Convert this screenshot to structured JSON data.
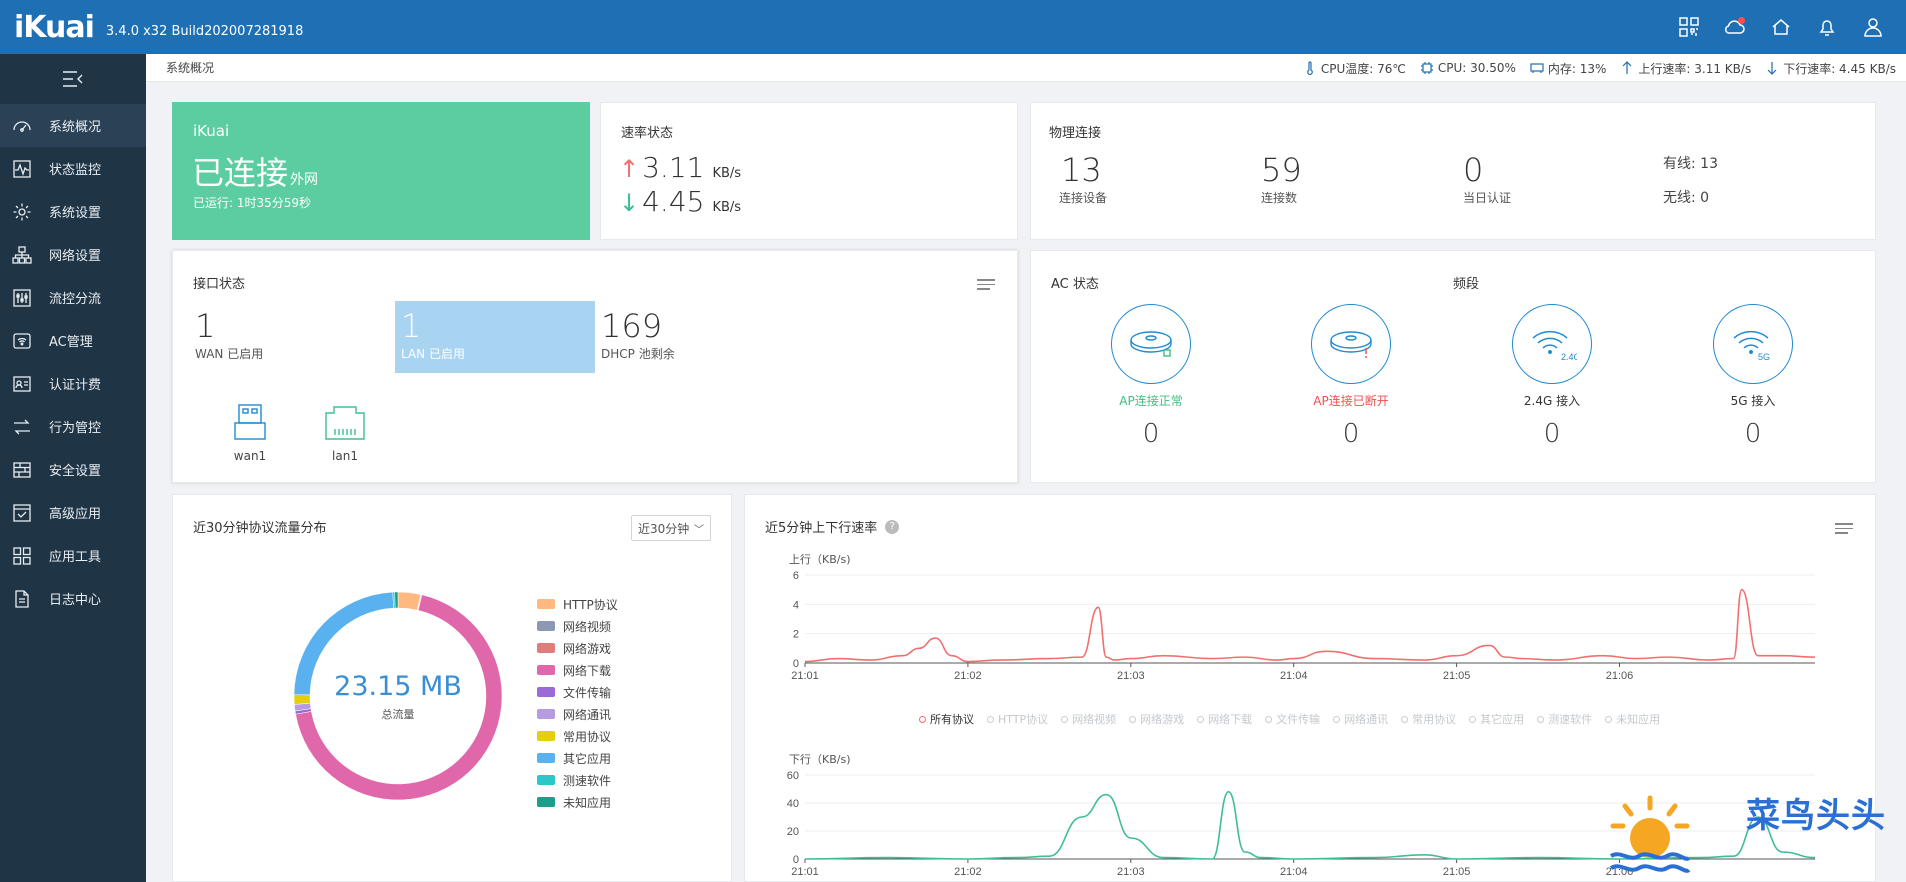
{
  "header": {
    "logo": "iKuai",
    "version": "3.4.0 x32 Build202007281918"
  },
  "sidebar": {
    "items": [
      {
        "label": "系统概况",
        "icon": "dashboard-icon"
      },
      {
        "label": "状态监控",
        "icon": "pulse-icon"
      },
      {
        "label": "系统设置",
        "icon": "gear-icon"
      },
      {
        "label": "网络设置",
        "icon": "network-icon"
      },
      {
        "label": "流控分流",
        "icon": "sliders-icon"
      },
      {
        "label": "AC管理",
        "icon": "ac-icon"
      },
      {
        "label": "认证计费",
        "icon": "id-card-icon"
      },
      {
        "label": "行为管控",
        "icon": "arrows-icon"
      },
      {
        "label": "安全设置",
        "icon": "firewall-icon"
      },
      {
        "label": "高级应用",
        "icon": "check-box-icon"
      },
      {
        "label": "应用工具",
        "icon": "apps-icon"
      },
      {
        "label": "日志中心",
        "icon": "document-icon"
      }
    ]
  },
  "subheader": {
    "breadcrumb": "系统概况",
    "cpu_temp": "CPU温度: 76℃",
    "cpu": "CPU: 30.50%",
    "memory": "内存: 13%",
    "up_speed": "上行速率: 3.11 KB/s",
    "down_speed": "下行速率: 4.45 KB/s"
  },
  "status_card": {
    "brand": "iKuai",
    "status": "已连接",
    "network": "外网",
    "uptime": "已运行: 1时35分59秒"
  },
  "rate_card": {
    "title": "速率状态",
    "up_value": "3.11",
    "up_unit": "KB/s",
    "down_value": "4.45",
    "down_unit": "KB/s"
  },
  "physical_card": {
    "title": "物理连接",
    "devices_value": "13",
    "devices_label": "连接设备",
    "connections_value": "59",
    "connections_label": "连接数",
    "auth_value": "0",
    "auth_label": "当日认证",
    "wired": "有线: 13",
    "wireless": "无线: 0"
  },
  "interface_card": {
    "title": "接口状态",
    "wan_value": "1",
    "wan_label": "WAN 已启用",
    "lan_value": "1",
    "lan_label": "LAN 已启用",
    "dhcp_value": "169",
    "dhcp_label": "DHCP 池剩余",
    "port1": "wan1",
    "port2": "lan1"
  },
  "ac_card": {
    "title": "AC 状态",
    "band_title": "频段",
    "items": [
      {
        "label": "AP连接正常",
        "value": "0",
        "color": "#3fbf7f"
      },
      {
        "label": "AP连接已断开",
        "value": "0",
        "color": "#f05050"
      },
      {
        "label": "2.4G 接入",
        "value": "0",
        "color": "#333333"
      },
      {
        "label": "5G 接入",
        "value": "0",
        "color": "#333333"
      }
    ],
    "badge_24": "2.4G",
    "badge_5": "5G"
  },
  "protocol_card": {
    "title": "近30分钟协议流量分布",
    "dropdown": "近30分钟",
    "total": "23.15 MB",
    "total_label": "总流量",
    "legend": [
      {
        "name": "HTTP协议",
        "color": "#ffb980"
      },
      {
        "name": "网络视频",
        "color": "#8d98b3"
      },
      {
        "name": "网络游戏",
        "color": "#e07c7c"
      },
      {
        "name": "网络下载",
        "color": "#e068aa"
      },
      {
        "name": "文件传输",
        "color": "#9a6bd6"
      },
      {
        "name": "网络通讯",
        "color": "#b69be0"
      },
      {
        "name": "常用协议",
        "color": "#e5cf0d"
      },
      {
        "name": "其它应用",
        "color": "#5ab1ef"
      },
      {
        "name": "测速软件",
        "color": "#2ec7c9"
      },
      {
        "name": "未知应用",
        "color": "#1b9e8a"
      }
    ]
  },
  "chart_data": [
    {
      "type": "pie",
      "categories": [
        "HTTP协议",
        "网络视频",
        "网络游戏",
        "网络下载",
        "文件传输",
        "网络通讯",
        "常用协议",
        "其它应用",
        "测速软件",
        "未知应用"
      ],
      "values": [
        3.5,
        0.1,
        0.1,
        68.5,
        0.5,
        1.0,
        1.5,
        24.0,
        0.3,
        0.5
      ],
      "title": "近30分钟协议流量分布"
    },
    {
      "type": "line",
      "title": "上行（KB/s)",
      "x_ticks": [
        "21:01",
        "21:02",
        "21:03",
        "21:04",
        "21:05",
        "21:06"
      ],
      "ylim": [
        0,
        6
      ],
      "y_ticks": [
        "0",
        "2",
        "4",
        "6"
      ],
      "series": [
        {
          "name": "所有协议",
          "color": "#f07070",
          "x": [
            0,
            0.2,
            0.4,
            0.6,
            0.7,
            0.8,
            0.9,
            1.0,
            1.2,
            1.5,
            1.7,
            1.8,
            1.85,
            1.9,
            2.0,
            2.2,
            2.5,
            2.7,
            2.9,
            3.0,
            3.2,
            3.5,
            3.8,
            4.0,
            4.2,
            4.3,
            4.4,
            4.6,
            4.9,
            5.1,
            5.3,
            5.55,
            5.7,
            5.75,
            5.85,
            6.0,
            6.2
          ],
          "y": [
            0.1,
            0.3,
            0.2,
            0.5,
            1.0,
            1.7,
            0.5,
            0.1,
            0.2,
            0.3,
            0.4,
            3.8,
            0.4,
            0.2,
            0.3,
            0.5,
            0.3,
            0.4,
            0.2,
            0.3,
            0.8,
            0.3,
            0.2,
            0.5,
            1.2,
            0.4,
            0.3,
            0.2,
            0.5,
            0.3,
            0.4,
            0.2,
            0.3,
            5.0,
            0.5,
            0.5,
            0.4
          ]
        }
      ]
    },
    {
      "type": "line",
      "title": "下行（KB/s)",
      "x_ticks": [
        "21:01",
        "21:02",
        "21:03",
        "21:04",
        "21:05",
        "21:06"
      ],
      "ylim": [
        0,
        60
      ],
      "y_ticks": [
        "0",
        "20",
        "40",
        "60"
      ],
      "series": [
        {
          "name": "所有协议",
          "color": "#3fbf8f",
          "x": [
            0,
            0.5,
            1.0,
            1.3,
            1.5,
            1.7,
            1.85,
            2.0,
            2.2,
            2.5,
            2.6,
            2.7,
            2.8,
            3.0,
            3.5,
            3.8,
            4.0,
            4.5,
            5.0,
            5.5,
            5.7,
            5.85,
            6.0,
            6.2
          ],
          "y": [
            0,
            1,
            0,
            1,
            2,
            30,
            46,
            15,
            1,
            0,
            48,
            5,
            1,
            0,
            1,
            3,
            0,
            1,
            0,
            1,
            2,
            30,
            5,
            1
          ]
        }
      ]
    }
  ],
  "speed_card": {
    "title": "近5分钟上下行速率",
    "up_axis_label": "上行（KB/s)",
    "down_axis_label": "下行（KB/s)",
    "legend": [
      "所有协议",
      "HTTP协议",
      "网络视频",
      "网络游戏",
      "网络下载",
      "文件传输",
      "网络通讯",
      "常用协议",
      "其它应用",
      "测速软件",
      "未知应用"
    ]
  },
  "watermark": {
    "text": "菜鸟头头"
  }
}
